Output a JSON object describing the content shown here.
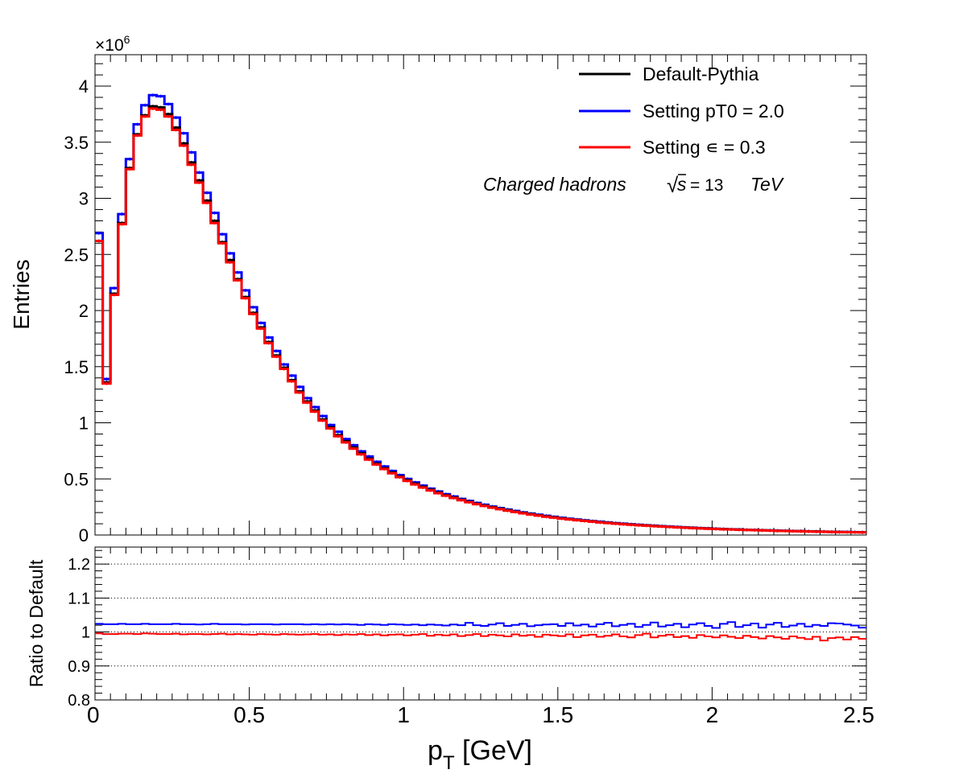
{
  "chart_data": [
    {
      "type": "line",
      "drawstyle": "steps",
      "title": "",
      "xlabel_main": "p",
      "xlabel_sub": "T",
      "xlabel_unit": " [GeV]",
      "ylabel": "Entries",
      "exponent_label": "×10",
      "exponent_power": "6",
      "xlim": [
        0,
        2.5
      ],
      "ylim": [
        0,
        4.28
      ],
      "y_scale": 1000000,
      "bin_width": 0.025,
      "y_ticks": [
        "0",
        "0.5",
        "1",
        "1.5",
        "2",
        "2.5",
        "3",
        "3.5",
        "4"
      ],
      "y_tick_values": [
        0,
        0.5,
        1,
        1.5,
        2,
        2.5,
        3,
        3.5,
        4
      ],
      "annotation": {
        "text": "Charged hadrons",
        "sqrt_symbol": "√",
        "s": "s",
        "value": "= 13",
        "unit": "TeV"
      },
      "legend_position": "top-right",
      "series": [
        {
          "name": "Default-Pythia",
          "color": "#000000",
          "values": [
            2.62,
            1.36,
            2.15,
            2.78,
            3.27,
            3.57,
            3.74,
            3.82,
            3.81,
            3.75,
            3.63,
            3.49,
            3.32,
            3.16,
            2.98,
            2.8,
            2.61,
            2.45,
            2.28,
            2.12,
            1.98,
            1.85,
            1.72,
            1.6,
            1.49,
            1.38,
            1.28,
            1.19,
            1.11,
            1.03,
            0.96,
            0.89,
            0.835,
            0.78,
            0.728,
            0.68,
            0.635,
            0.595,
            0.557,
            0.521,
            0.488,
            0.457,
            0.429,
            0.403,
            0.378,
            0.355,
            0.334,
            0.314,
            0.296,
            0.279,
            0.263,
            0.248,
            0.234,
            0.221,
            0.208,
            0.197,
            0.186,
            0.176,
            0.166,
            0.158,
            0.149,
            0.141,
            0.134,
            0.127,
            0.121,
            0.114,
            0.109,
            0.103,
            0.098,
            0.093,
            0.089,
            0.085,
            0.081,
            0.077,
            0.073,
            0.07,
            0.066,
            0.063,
            0.06,
            0.058,
            0.055,
            0.052,
            0.05,
            0.048,
            0.046,
            0.044,
            0.042,
            0.04,
            0.038,
            0.037,
            0.035,
            0.034,
            0.032,
            0.031,
            0.03,
            0.028,
            0.027,
            0.026,
            0.025,
            0.024
          ]
        },
        {
          "name": "Setting pT0 = 2.0",
          "color": "#0000ff",
          "values": [
            2.69,
            1.39,
            2.2,
            2.86,
            3.35,
            3.66,
            3.83,
            3.92,
            3.91,
            3.84,
            3.72,
            3.58,
            3.41,
            3.23,
            3.05,
            2.87,
            2.68,
            2.51,
            2.34,
            2.18,
            2.03,
            1.89,
            1.76,
            1.64,
            1.52,
            1.42,
            1.32,
            1.22,
            1.14,
            1.06,
            0.98,
            0.92,
            0.855,
            0.8,
            0.746,
            0.7,
            0.652,
            0.611,
            0.571,
            0.534,
            0.5,
            0.469,
            0.44,
            0.413,
            0.388,
            0.364,
            0.343,
            0.322,
            0.304,
            0.286,
            0.27,
            0.254,
            0.24,
            0.227,
            0.214,
            0.202,
            0.191,
            0.181,
            0.171,
            0.162,
            0.153,
            0.145,
            0.138,
            0.131,
            0.124,
            0.118,
            0.112,
            0.106,
            0.101,
            0.096,
            0.091,
            0.087,
            0.083,
            0.079,
            0.075,
            0.072,
            0.068,
            0.065,
            0.062,
            0.059,
            0.056,
            0.054,
            0.051,
            0.049,
            0.047,
            0.045,
            0.043,
            0.041,
            0.039,
            0.038,
            0.036,
            0.035,
            0.033,
            0.032,
            0.03,
            0.029,
            0.028,
            0.027,
            0.026,
            0.025
          ]
        },
        {
          "name": "Setting ∊ = 0.3",
          "color": "#ff0000",
          "values": [
            2.62,
            1.35,
            2.14,
            2.77,
            3.26,
            3.56,
            3.73,
            3.8,
            3.79,
            3.73,
            3.61,
            3.47,
            3.3,
            3.14,
            2.96,
            2.78,
            2.6,
            2.43,
            2.27,
            2.11,
            1.97,
            1.84,
            1.71,
            1.59,
            1.48,
            1.37,
            1.27,
            1.18,
            1.1,
            1.02,
            0.95,
            0.88,
            0.825,
            0.77,
            0.719,
            0.672,
            0.628,
            0.588,
            0.55,
            0.515,
            0.482,
            0.451,
            0.423,
            0.397,
            0.373,
            0.35,
            0.33,
            0.31,
            0.292,
            0.275,
            0.259,
            0.244,
            0.23,
            0.217,
            0.205,
            0.194,
            0.183,
            0.173,
            0.163,
            0.155,
            0.146,
            0.139,
            0.132,
            0.125,
            0.119,
            0.112,
            0.107,
            0.101,
            0.096,
            0.091,
            0.087,
            0.083,
            0.079,
            0.075,
            0.072,
            0.068,
            0.065,
            0.062,
            0.059,
            0.056,
            0.054,
            0.051,
            0.049,
            0.047,
            0.045,
            0.043,
            0.041,
            0.039,
            0.037,
            0.036,
            0.034,
            0.033,
            0.031,
            0.03,
            0.029,
            0.027,
            0.026,
            0.025,
            0.024,
            0.023
          ]
        }
      ]
    },
    {
      "type": "line",
      "drawstyle": "steps",
      "ylabel": "Ratio to Default",
      "xlim": [
        0,
        2.5
      ],
      "ylim": [
        0.8,
        1.25
      ],
      "grid": "horizontal dotted",
      "y_ticks": [
        "0.8",
        "0.9",
        "1",
        "1.1",
        "1.2"
      ],
      "y_tick_values": [
        0.8,
        0.9,
        1.0,
        1.1,
        1.2
      ],
      "x_ticks": [
        "0",
        "0.5",
        "1",
        "1.5",
        "2",
        "2.5"
      ],
      "x_tick_values": [
        0,
        0.5,
        1,
        1.5,
        2,
        2.5
      ],
      "series": [
        {
          "name": "Setting pT0 = 2.0",
          "color": "#0000ff",
          "values": [
            1.024,
            1.023,
            1.023,
            1.024,
            1.023,
            1.023,
            1.024,
            1.023,
            1.023,
            1.023,
            1.024,
            1.023,
            1.023,
            1.022,
            1.023,
            1.024,
            1.023,
            1.023,
            1.023,
            1.022,
            1.023,
            1.023,
            1.023,
            1.022,
            1.023,
            1.023,
            1.023,
            1.022,
            1.023,
            1.022,
            1.023,
            1.022,
            1.023,
            1.022,
            1.021,
            1.023,
            1.022,
            1.021,
            1.023,
            1.022,
            1.021,
            1.022,
            1.02,
            1.022,
            1.021,
            1.019,
            1.022,
            1.02,
            1.027,
            1.02,
            1.018,
            1.022,
            1.026,
            1.018,
            1.021,
            1.024,
            1.017,
            1.02,
            1.022,
            1.023,
            1.018,
            1.026,
            1.019,
            1.022,
            1.016,
            1.023,
            1.027,
            1.017,
            1.021,
            1.024,
            1.015,
            1.021,
            1.028,
            1.016,
            1.02,
            1.024,
            1.014,
            1.022,
            1.026,
            1.018,
            1.012,
            1.024,
            1.029,
            1.015,
            1.02,
            1.025,
            1.013,
            1.022,
            1.027,
            1.015,
            1.019,
            1.024,
            1.016,
            1.021,
            1.018,
            1.026,
            1.025,
            1.022,
            1.019,
            1.013
          ]
        },
        {
          "name": "Setting ∊ = 0.3",
          "color": "#ff0000",
          "values": [
            0.996,
            0.994,
            0.994,
            0.995,
            0.995,
            0.994,
            0.996,
            0.995,
            0.994,
            0.994,
            0.995,
            0.993,
            0.994,
            0.994,
            0.993,
            0.994,
            0.995,
            0.993,
            0.994,
            0.993,
            0.992,
            0.994,
            0.993,
            0.992,
            0.994,
            0.993,
            0.992,
            0.993,
            0.994,
            0.992,
            0.993,
            0.991,
            0.993,
            0.992,
            0.994,
            0.991,
            0.993,
            0.99,
            0.992,
            0.993,
            0.99,
            0.992,
            0.994,
            0.989,
            0.992,
            0.99,
            0.993,
            0.988,
            0.991,
            0.994,
            0.988,
            0.992,
            0.99,
            0.987,
            0.993,
            0.989,
            0.991,
            0.986,
            0.992,
            0.99,
            0.988,
            0.993,
            0.985,
            0.99,
            0.992,
            0.986,
            0.989,
            0.993,
            0.987,
            0.984,
            0.991,
            0.995,
            0.984,
            0.989,
            0.992,
            0.985,
            0.988,
            0.983,
            0.991,
            0.987,
            0.984,
            0.99,
            0.986,
            0.982,
            0.989,
            0.985,
            0.981,
            0.988,
            0.984,
            0.98,
            0.987,
            0.983,
            0.979,
            0.986,
            0.975,
            0.982,
            0.984,
            0.978,
            0.985,
            0.98
          ]
        }
      ]
    }
  ]
}
